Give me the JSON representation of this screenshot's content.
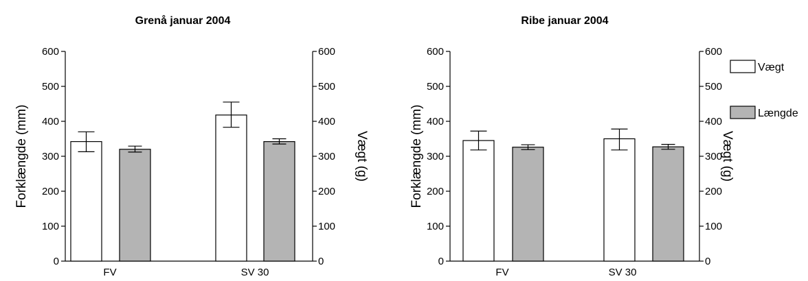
{
  "chart_data": [
    {
      "type": "bar",
      "title": "Grenå januar 2004",
      "categories": [
        "FV",
        "SV 30"
      ],
      "ylabel": "Forklængde (mm)",
      "y2label": "Vægt (g)",
      "ylim": [
        0,
        600
      ],
      "y2lim": [
        0,
        600
      ],
      "yticks": [
        "0",
        "100",
        "200",
        "300",
        "400",
        "500",
        "600"
      ],
      "y2ticks": [
        "0",
        "100",
        "200",
        "300",
        "400",
        "500",
        "600"
      ],
      "series": [
        {
          "name": "Vægt",
          "axis": "right",
          "values": [
            342,
            418
          ],
          "err_low": [
            313,
            383
          ],
          "err_high": [
            370,
            455
          ]
        },
        {
          "name": "Længde",
          "axis": "left",
          "values": [
            320,
            342
          ],
          "err_low": [
            312,
            335
          ],
          "err_high": [
            329,
            350
          ]
        }
      ]
    },
    {
      "type": "bar",
      "title": "Ribe januar 2004",
      "categories": [
        "FV",
        "SV 30"
      ],
      "ylabel": "Forklængde (mm)",
      "y2label": "Vægt (g)",
      "ylim": [
        0,
        600
      ],
      "y2lim": [
        0,
        600
      ],
      "yticks": [
        "0",
        "100",
        "200",
        "300",
        "400",
        "500",
        "600"
      ],
      "y2ticks": [
        "0",
        "100",
        "200",
        "300",
        "400",
        "500",
        "600"
      ],
      "series": [
        {
          "name": "Vægt",
          "axis": "right",
          "values": [
            345,
            350
          ],
          "err_low": [
            318,
            318
          ],
          "err_high": [
            372,
            378
          ]
        },
        {
          "name": "Længde",
          "axis": "left",
          "values": [
            326,
            327
          ],
          "err_low": [
            319,
            320
          ],
          "err_high": [
            333,
            334
          ]
        }
      ]
    }
  ],
  "legend": {
    "placement": "top-right",
    "items": [
      {
        "label": "Vægt",
        "color": "#ffffff"
      },
      {
        "label": "Længde",
        "color": "#b4b4b4"
      }
    ]
  },
  "colors": {
    "bar_weight": "#ffffff",
    "bar_length": "#b4b4b4",
    "stroke": "#000000"
  }
}
